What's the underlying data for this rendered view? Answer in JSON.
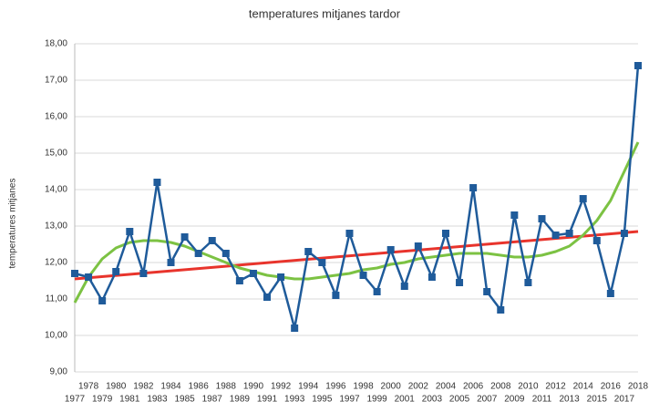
{
  "chart_data": {
    "type": "line",
    "title": "temperatures mitjanes tardor",
    "y_label": "temperatures mitjanes",
    "categories": [
      "1977",
      "1978",
      "1979",
      "1980",
      "1981",
      "1982",
      "1983",
      "1984",
      "1985",
      "1986",
      "1987",
      "1988",
      "1989",
      "1990",
      "1991",
      "1992",
      "1993",
      "1994",
      "1995",
      "1996",
      "1997",
      "1998",
      "1999",
      "2000",
      "2001",
      "2002",
      "2003",
      "2004",
      "2005",
      "2006",
      "2007",
      "2008",
      "2009",
      "2010",
      "2011",
      "2012",
      "2013",
      "2014",
      "2015",
      "2016",
      "2017",
      "2018"
    ],
    "series": [
      {
        "color": "#1f5b9a",
        "values": [
          11.7,
          11.6,
          10.95,
          11.75,
          12.85,
          11.7,
          14.2,
          12.0,
          12.7,
          12.25,
          12.6,
          12.25,
          11.5,
          11.7,
          11.05,
          11.6,
          10.2,
          12.3,
          12.0,
          11.1,
          12.8,
          11.65,
          11.2,
          12.35,
          11.35,
          12.45,
          11.6,
          12.8,
          11.45,
          14.05,
          11.2,
          10.7,
          13.3,
          11.45,
          13.2,
          12.75,
          12.8,
          13.75,
          12.6,
          11.15,
          12.8,
          17.4
        ]
      }
    ],
    "linear_trend": {
      "color": "#e8342c",
      "start": 11.55,
      "end": 12.85
    },
    "poly_trend": {
      "color": "#7cc243",
      "values": [
        10.9,
        11.6,
        12.1,
        12.4,
        12.55,
        12.6,
        12.6,
        12.55,
        12.45,
        12.3,
        12.15,
        12.0,
        11.85,
        11.75,
        11.65,
        11.6,
        11.55,
        11.55,
        11.6,
        11.65,
        11.7,
        11.8,
        11.85,
        11.95,
        12.0,
        12.1,
        12.15,
        12.2,
        12.25,
        12.25,
        12.25,
        12.2,
        12.15,
        12.15,
        12.2,
        12.3,
        12.45,
        12.75,
        13.15,
        13.7,
        14.5,
        15.3
      ]
    },
    "ylim": [
      9,
      18
    ],
    "yticks": [
      {
        "value": 9,
        "label": "9,00"
      },
      {
        "value": 10,
        "label": "10,00"
      },
      {
        "value": 11,
        "label": "11,00"
      },
      {
        "value": 12,
        "label": "12,00"
      },
      {
        "value": 13,
        "label": "13,00"
      },
      {
        "value": 14,
        "label": "14,00"
      },
      {
        "value": 15,
        "label": "15,00"
      },
      {
        "value": 16,
        "label": "16,00"
      },
      {
        "value": 17,
        "label": "17,00"
      },
      {
        "value": 18,
        "label": "18,00"
      }
    ],
    "grid": true
  }
}
